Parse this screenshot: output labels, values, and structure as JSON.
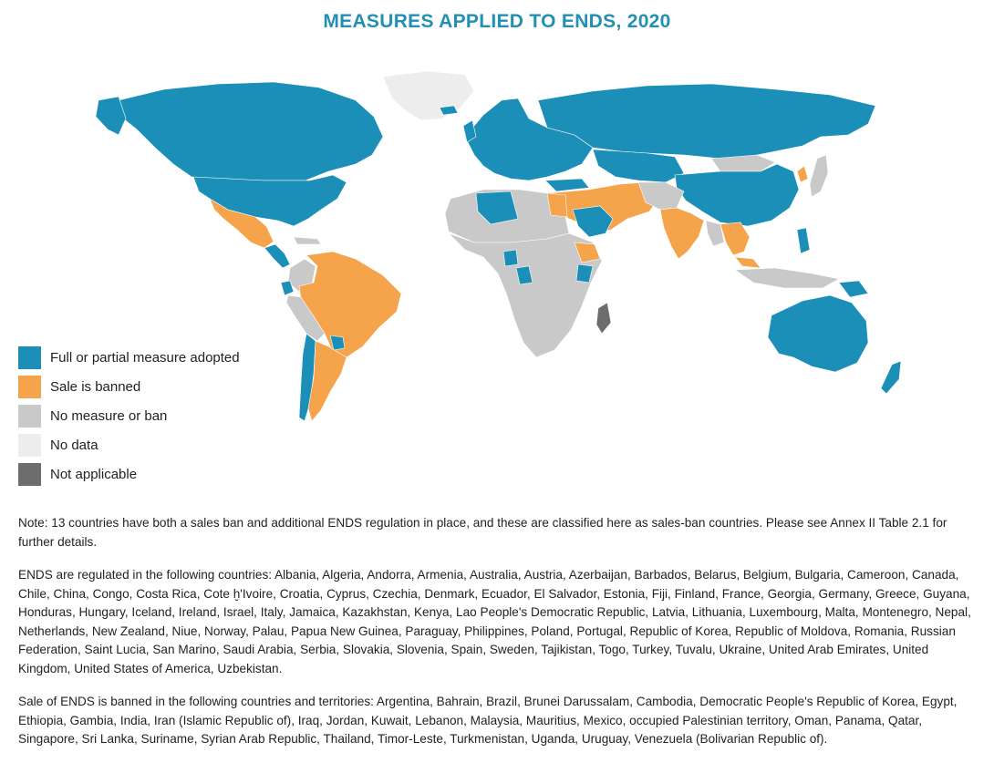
{
  "title": "MEASURES APPLIED TO ENDS, 2020",
  "colors": {
    "title": "#2390b3",
    "measure": "#1b8fb7",
    "banned": "#f5a44b",
    "none": "#c9c9c9",
    "nodata": "#ededed",
    "na": "#6d6d6d"
  },
  "legend": [
    {
      "key": "measure",
      "label": "Full or partial measure adopted",
      "color": "#1b8fb7"
    },
    {
      "key": "banned",
      "label": "Sale is banned",
      "color": "#f5a44b"
    },
    {
      "key": "none",
      "label": "No measure or ban",
      "color": "#c9c9c9"
    },
    {
      "key": "nodata",
      "label": "No data",
      "color": "#ededed"
    },
    {
      "key": "na",
      "label": "Not applicable",
      "color": "#6d6d6d"
    }
  ],
  "notes": {
    "note": "Note: 13 countries have both a sales ban and additional ENDS regulation in place, and these are classified here as sales-ban countries. Please see Annex II Table 2.1 for further details.",
    "regulated": "ENDS are regulated in the following countries: Albania, Algeria, Andorra, Armenia, Australia, Austria, Azerbaijan, Barbados, Belarus, Belgium, Bulgaria, Cameroon, Canada, Chile, China, Congo, Costa Rica, Cote ḫ'Ivoire, Croatia, Cyprus, Czechia, Denmark, Ecuador, El Salvador, Estonia, Fiji, Finland, France, Georgia, Germany, Greece, Guyana, Honduras, Hungary, Iceland, Ireland, Israel, Italy, Jamaica, Kazakhstan, Kenya, Lao People's Democratic Republic, Latvia, Lithuania, Luxembourg, Malta, Montenegro, Nepal, Netherlands, New Zealand, Niue, Norway, Palau, Papua New Guinea, Paraguay, Philippines, Poland, Portugal, Republic of Korea, Republic of Moldova, Romania, Russian Federation, Saint Lucia, San Marino, Saudi Arabia, Serbia, Slovakia, Slovenia, Spain, Sweden, Tajikistan, Togo, Turkey, Tuvalu, Ukraine, United Arab Emirates, United Kingdom, United States of America, Uzbekistan.",
    "banned": "Sale of ENDS is banned in the following countries and territories: Argentina, Bahrain, Brazil, Brunei Darussalam, Cambodia, Democratic People's Republic of Korea, Egypt, Ethiopia, Gambia, India, Iran (Islamic Republic of), Iraq, Jordan, Kuwait, Lebanon, Malaysia, Mauritius, Mexico, occupied Palestinian territory, Oman, Panama, Qatar, Singapore, Sri Lanka, Suriname, Syrian Arab Republic, Thailand, Timor-Leste, Turkmenistan, Uganda, Uruguay, Venezuela (Bolivarian Republic of)."
  }
}
